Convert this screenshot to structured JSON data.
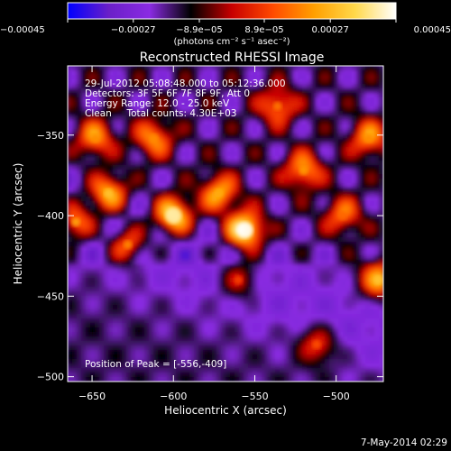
{
  "chart_data": {
    "type": "heatmap",
    "title": "Reconstructed RHESSI Image",
    "xlabel": "Heliocentric X (arcsec)",
    "ylabel": "Heliocentric Y (arcsec)",
    "xlim": [
      -665,
      -471
    ],
    "ylim": [
      -503,
      -307
    ],
    "x_ticks": [
      -650,
      -600,
      -550,
      -500
    ],
    "y_ticks": [
      -350,
      -400,
      -450,
      -500
    ],
    "x_tick_labels": [
      "−650",
      "−600",
      "−550",
      "−500"
    ],
    "y_tick_labels": [
      "−350",
      "−400",
      "−450",
      "−500"
    ],
    "colorbar": {
      "range": [
        -0.00045,
        0.00045
      ],
      "ticks": [
        -0.00045,
        -0.00027,
        -8.9e-05,
        8.9e-05,
        0.00027,
        0.00045
      ],
      "tick_labels": [
        "−0.00045",
        "−0.00027",
        "−8.9e−05",
        "8.9e−05",
        "0.00027",
        "0.00045"
      ],
      "unit_label": "(photons cm⁻² s⁻¹ asec⁻²)",
      "colors": [
        "#0000ff",
        "#6a1fc8",
        "#8a2be2",
        "#000000",
        "#c80000",
        "#ff4a00",
        "#ff9f00",
        "#ffd84a",
        "#ffffff"
      ]
    },
    "annotations": [
      "29-Jul-2012 05:08:48.000 to 05:12:36.000",
      "Detectors: 3F 5F 6F 7F 8F 9F, Att 0",
      "Energy Range: 12.0 - 25.0 keV",
      "Clean     Total counts: 4.30E+03"
    ],
    "peak": {
      "label": "Position of Peak = [-556,-409]",
      "x": -556,
      "y": -409
    },
    "sources": [
      {
        "x": -556,
        "y": -409,
        "value": 0.00045
      },
      {
        "x": -600,
        "y": -400,
        "value": 0.0004
      },
      {
        "x": -640,
        "y": -386,
        "value": 0.0003
      },
      {
        "x": -520,
        "y": -372,
        "value": 0.00022
      },
      {
        "x": -572,
        "y": -386,
        "value": 0.00025
      },
      {
        "x": -648,
        "y": -352,
        "value": 0.0002
      },
      {
        "x": -612,
        "y": -352,
        "value": 0.0002
      },
      {
        "x": -536,
        "y": -332,
        "value": 0.00018
      },
      {
        "x": -480,
        "y": -352,
        "value": 0.0002
      },
      {
        "x": -474,
        "y": -440,
        "value": 0.0003
      },
      {
        "x": -660,
        "y": -404,
        "value": 0.00025
      },
      {
        "x": -628,
        "y": -418,
        "value": 0.0002
      },
      {
        "x": -496,
        "y": -400,
        "value": 0.00015
      },
      {
        "x": -512,
        "y": -480,
        "value": 0.00012
      },
      {
        "x": -560,
        "y": -440,
        "value": 0.0001
      }
    ]
  },
  "footer": {
    "date": "7-May-2014 02:29"
  }
}
